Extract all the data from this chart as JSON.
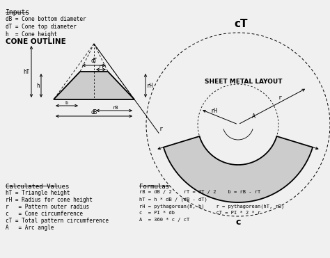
{
  "bg_color": "#f0f0f0",
  "title": "cT",
  "inputs_title": "Inputs",
  "inputs": [
    "dB = Cone bottom diameter",
    "dT = Cone top diameter",
    "h  = Cone height"
  ],
  "cone_outline_title": "CONE OUTLINE",
  "sheet_metal_title": "SHEET METAL LAYOUT",
  "calc_title": "Calculated Values",
  "calc_items": [
    "hT = Triangle height",
    "rH = Radius for cone height",
    "r   = Pattern outer radius",
    "c   = Cone circumference",
    "cT = Total pattern circumference",
    "A   = Arc angle"
  ],
  "formulas_title": "Formulas",
  "formulas": [
    "rB = dB / 2    rT = dT / 2    b = rB - rT",
    "hT = h * dB / (dB - dT)",
    "rH = pythagorean(h, b)    r = pythagorean(hT, rB)",
    "c  = PI * db              cT = PI * 2 * r",
    "A  = 360 * c / cT"
  ]
}
